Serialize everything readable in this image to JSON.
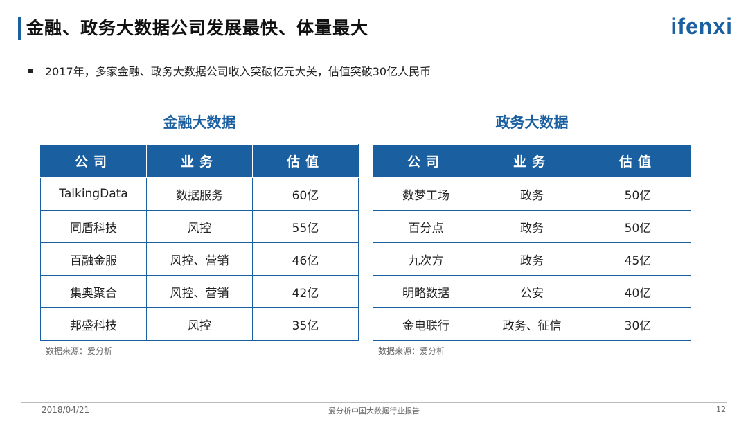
{
  "header": {
    "title": "金融、政务大数据公司发展最快、体量最大",
    "logo_text": "ifenxi"
  },
  "bullet": "2017年，多家金融、政务大数据公司收入突破亿元大关，估值突破30亿人民币",
  "finance": {
    "title": "金融大数据",
    "columns": [
      "公司",
      "业务",
      "估值"
    ],
    "rows": [
      [
        "TalkingData",
        "数据服务",
        "60亿"
      ],
      [
        "同盾科技",
        "风控",
        "55亿"
      ],
      [
        "百融金服",
        "风控、营销",
        "46亿"
      ],
      [
        "集奥聚合",
        "风控、营销",
        "42亿"
      ],
      [
        "邦盛科技",
        "风控",
        "35亿"
      ]
    ],
    "source": "数据来源：爱分析"
  },
  "government": {
    "title": "政务大数据",
    "columns": [
      "公司",
      "业务",
      "估值"
    ],
    "rows": [
      [
        "数梦工场",
        "政务",
        "50亿"
      ],
      [
        "百分点",
        "政务",
        "50亿"
      ],
      [
        "九次方",
        "政务",
        "45亿"
      ],
      [
        "明略数据",
        "公安",
        "40亿"
      ],
      [
        "金电联行",
        "政务、征信",
        "30亿"
      ]
    ],
    "source": "数据来源：爱分析"
  },
  "footer": {
    "date": "2018/04/21",
    "report": "爱分析中国大数据行业报告",
    "page": "12"
  },
  "colors": {
    "accent": "#1a5fa0"
  }
}
